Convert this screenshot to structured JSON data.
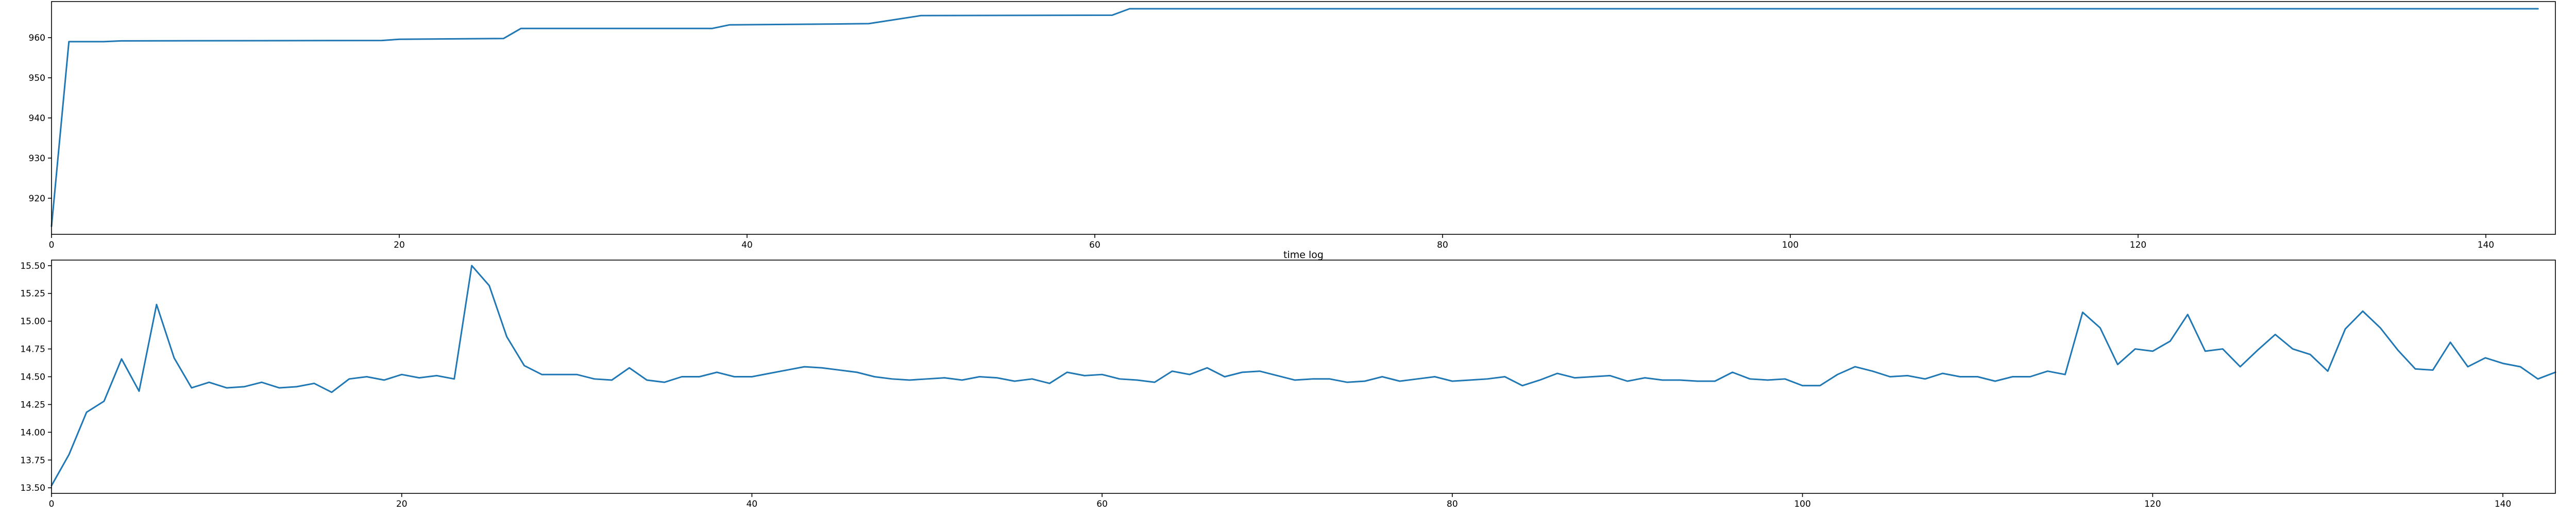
{
  "colors": {
    "series": "#1f77b4",
    "axes": "#000000",
    "background": "#ffffff"
  },
  "chart_data": [
    {
      "type": "line",
      "title": "",
      "xlabel": "time log",
      "ylabel": "",
      "xlim": [
        0,
        144
      ],
      "ylim": [
        911,
        969
      ],
      "xticks": [
        0,
        20,
        40,
        60,
        80,
        100,
        120,
        140
      ],
      "yticks": [
        920,
        930,
        940,
        950,
        960
      ],
      "grid": false,
      "legend": "none",
      "series": [
        {
          "points": [
            [
              0,
              913
            ],
            [
              1,
              959
            ],
            [
              2,
              959
            ],
            [
              3,
              959
            ],
            [
              4,
              959.2
            ],
            [
              19,
              959.3
            ],
            [
              20,
              959.6
            ],
            [
              26,
              959.8
            ],
            [
              27,
              962.3
            ],
            [
              38,
              962.3
            ],
            [
              39,
              963.2
            ],
            [
              45,
              963.4
            ],
            [
              47,
              963.5
            ],
            [
              50,
              965.5
            ],
            [
              61,
              965.6
            ],
            [
              62,
              967.2
            ],
            [
              143,
              967.2
            ]
          ]
        }
      ]
    },
    {
      "type": "line",
      "title": "",
      "xlabel": "",
      "ylabel": "",
      "xlim": [
        0,
        143
      ],
      "ylim": [
        13.45,
        15.55
      ],
      "xticks": [
        0,
        20,
        40,
        60,
        80,
        100,
        120,
        140
      ],
      "yticks": [
        13.5,
        13.75,
        14.0,
        14.25,
        14.5,
        14.75,
        15.0,
        15.25,
        15.5
      ],
      "ytick_labels": [
        "13.50",
        "13.75",
        "14.00",
        "14.25",
        "14.50",
        "14.75",
        "15.00",
        "15.25",
        "15.50"
      ],
      "grid": false,
      "legend": "none",
      "series": [
        {
          "values": [
            13.52,
            13.8,
            14.18,
            14.28,
            14.66,
            14.37,
            15.15,
            14.67,
            14.4,
            14.45,
            14.4,
            14.41,
            14.45,
            14.4,
            14.41,
            14.44,
            14.36,
            14.48,
            14.5,
            14.47,
            14.52,
            14.49,
            14.51,
            14.48,
            15.5,
            15.32,
            14.86,
            14.6,
            14.52,
            14.52,
            14.52,
            14.48,
            14.47,
            14.58,
            14.47,
            14.45,
            14.5,
            14.5,
            14.54,
            14.5,
            14.5,
            14.53,
            14.56,
            14.59,
            14.58,
            14.56,
            14.54,
            14.5,
            14.48,
            14.47,
            14.48,
            14.49,
            14.47,
            14.5,
            14.49,
            14.46,
            14.48,
            14.44,
            14.54,
            14.51,
            14.52,
            14.48,
            14.47,
            14.45,
            14.55,
            14.52,
            14.58,
            14.5,
            14.54,
            14.55,
            14.51,
            14.47,
            14.48,
            14.48,
            14.45,
            14.46,
            14.5,
            14.46,
            14.48,
            14.5,
            14.46,
            14.47,
            14.48,
            14.5,
            14.42,
            14.47,
            14.53,
            14.49,
            14.5,
            14.51,
            14.46,
            14.49,
            14.47,
            14.47,
            14.46,
            14.46,
            14.54,
            14.48,
            14.47,
            14.48,
            14.42,
            14.42,
            14.52,
            14.59,
            14.55,
            14.5,
            14.51,
            14.48,
            14.53,
            14.5,
            14.5,
            14.46,
            14.5,
            14.5,
            14.55,
            14.52,
            15.08,
            14.94,
            14.61,
            14.75,
            14.73,
            14.82,
            15.06,
            14.73,
            14.75,
            14.59,
            14.74,
            14.88,
            14.75,
            14.7,
            14.55,
            14.93,
            15.09,
            14.94,
            14.74,
            14.57,
            14.56,
            14.81,
            14.59,
            14.67,
            14.62,
            14.59,
            14.48,
            14.54
          ]
        }
      ]
    }
  ]
}
